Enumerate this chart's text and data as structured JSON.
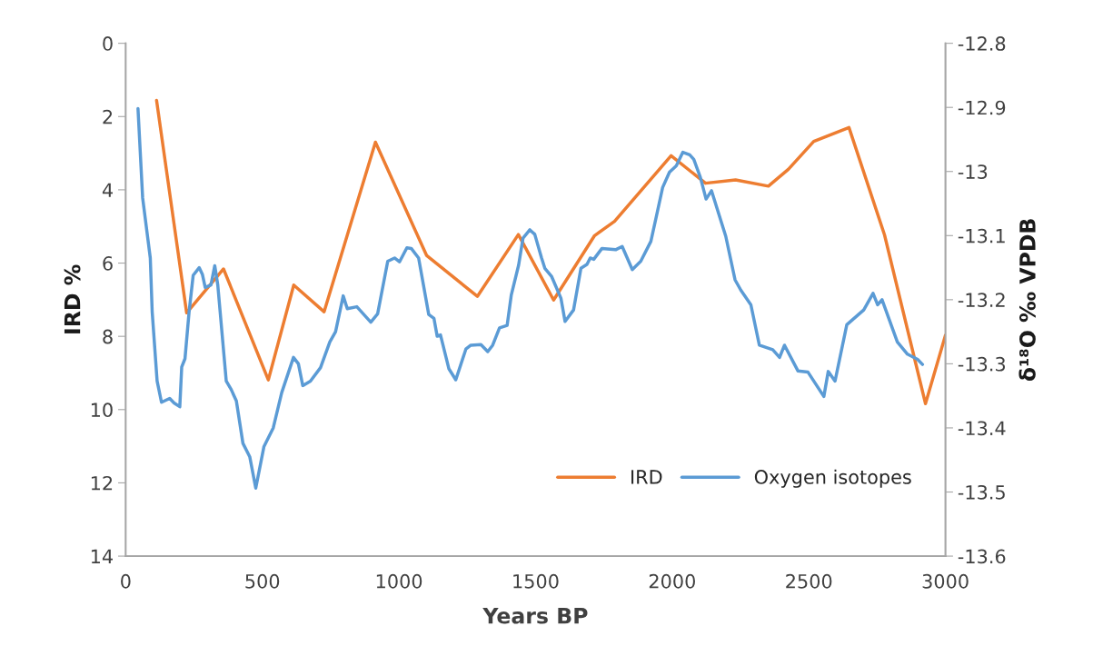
{
  "chart_data": {
    "type": "line",
    "xlabel": "Years BP",
    "ylabel": "IRD %",
    "y2label": "δ¹⁸O ‰ VPDB",
    "xlim": [
      0,
      3000
    ],
    "xticks": [
      0,
      500,
      1000,
      1500,
      2000,
      2500,
      3000
    ],
    "ylim": [
      14,
      0
    ],
    "yticks": [
      0,
      2,
      4,
      6,
      8,
      10,
      12,
      14
    ],
    "y2lim": [
      -13.6,
      -12.8
    ],
    "y2ticks": [
      -12.8,
      -12.9,
      -13,
      -13.1,
      -13.2,
      -13.3,
      -13.4,
      -13.5,
      -13.6
    ],
    "grid": false,
    "legend": "bottom right",
    "marker": "none",
    "line_style": "solid",
    "series": [
      {
        "name": "IRD",
        "color": "#ed7d31",
        "x": [
          113,
          223,
          358,
          522,
          615,
          726,
          914,
          1101,
          1287,
          1437,
          1566,
          1716,
          1789,
          1996,
          2122,
          2232,
          2352,
          2425,
          2518,
          2647,
          2777,
          2927,
          3000
        ],
        "values": [
          1.56,
          7.36,
          6.16,
          9.19,
          6.6,
          7.33,
          2.7,
          5.79,
          6.91,
          5.22,
          7.01,
          5.25,
          4.86,
          3.07,
          3.82,
          3.73,
          3.9,
          3.44,
          2.68,
          2.3,
          5.23,
          9.84,
          7.97
        ]
      },
      {
        "name": "Oxygen isotopes",
        "color": "#5b9bd5",
        "axis": "y2",
        "x": [
          45,
          62,
          90,
          97,
          115,
          131,
          161,
          177,
          198,
          205,
          217,
          232,
          247,
          269,
          281,
          291,
          312,
          326,
          337,
          368,
          386,
          405,
          429,
          454,
          476,
          506,
          540,
          571,
          614,
          632,
          648,
          676,
          713,
          747,
          768,
          796,
          811,
          846,
          897,
          922,
          959,
          984,
          1002,
          1029,
          1045,
          1072,
          1109,
          1128,
          1140,
          1152,
          1183,
          1208,
          1245,
          1263,
          1300,
          1325,
          1343,
          1368,
          1396,
          1411,
          1438,
          1454,
          1479,
          1497,
          1522,
          1534,
          1559,
          1593,
          1608,
          1639,
          1666,
          1688,
          1700,
          1713,
          1743,
          1793,
          1817,
          1854,
          1885,
          1922,
          1941,
          1965,
          1990,
          2015,
          2039,
          2064,
          2079,
          2103,
          2124,
          2144,
          2196,
          2230,
          2251,
          2288,
          2319,
          2368,
          2393,
          2411,
          2460,
          2497,
          2555,
          2571,
          2596,
          2639,
          2701,
          2735,
          2752,
          2768,
          2824,
          2861,
          2898,
          2916
        ],
        "values": [
          -12.902,
          -13.041,
          -13.135,
          -13.219,
          -13.327,
          -13.36,
          -13.354,
          -13.361,
          -13.367,
          -13.305,
          -13.292,
          -13.219,
          -13.162,
          -13.15,
          -13.161,
          -13.181,
          -13.177,
          -13.147,
          -13.177,
          -13.327,
          -13.34,
          -13.358,
          -13.424,
          -13.445,
          -13.494,
          -13.429,
          -13.4,
          -13.345,
          -13.29,
          -13.3,
          -13.334,
          -13.327,
          -13.306,
          -13.266,
          -13.25,
          -13.194,
          -13.214,
          -13.211,
          -13.235,
          -13.222,
          -13.14,
          -13.135,
          -13.141,
          -13.119,
          -13.12,
          -13.135,
          -13.223,
          -13.229,
          -13.257,
          -13.255,
          -13.308,
          -13.325,
          -13.277,
          -13.271,
          -13.27,
          -13.281,
          -13.271,
          -13.244,
          -13.24,
          -13.193,
          -13.146,
          -13.104,
          -13.091,
          -13.098,
          -13.135,
          -13.151,
          -13.164,
          -13.198,
          -13.234,
          -13.216,
          -13.151,
          -13.145,
          -13.135,
          -13.137,
          -13.12,
          -13.122,
          -13.117,
          -13.153,
          -13.14,
          -13.109,
          -13.072,
          -13.025,
          -13.001,
          -12.991,
          -12.97,
          -12.974,
          -12.981,
          -13.009,
          -13.043,
          -13.03,
          -13.101,
          -13.169,
          -13.185,
          -13.208,
          -13.271,
          -13.278,
          -13.29,
          -13.271,
          -13.311,
          -13.313,
          -13.351,
          -13.312,
          -13.327,
          -13.239,
          -13.216,
          -13.19,
          -13.208,
          -13.2,
          -13.266,
          -13.285,
          -13.293,
          -13.301
        ]
      }
    ]
  }
}
